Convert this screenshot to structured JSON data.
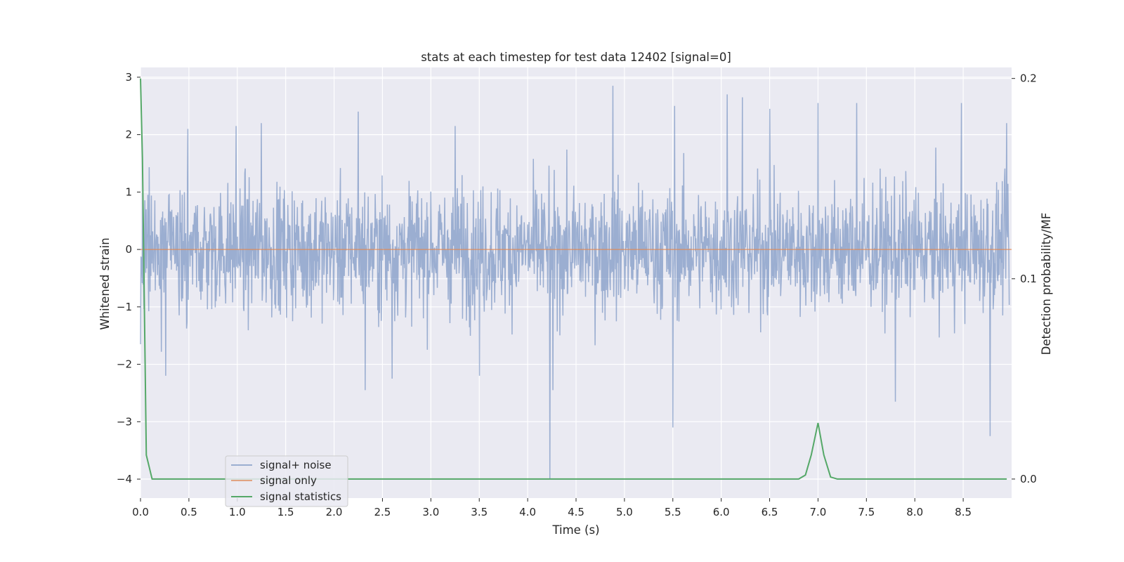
{
  "chart_data": {
    "type": "line",
    "title": "stats at each timestep for test data 12402 [signal=0]",
    "xlabel": "Time (s)",
    "ylabel": "Whitened strain",
    "ylabel_right": "Detection probability/MF",
    "xlim": [
      0.0,
      9.0
    ],
    "ylim": [
      -4.33,
      3.17
    ],
    "ylim_right": [
      -0.0095,
      0.2055
    ],
    "x_ticks": [
      0.0,
      0.5,
      1.0,
      1.5,
      2.0,
      2.5,
      3.0,
      3.5,
      4.0,
      4.5,
      5.0,
      5.5,
      6.0,
      6.5,
      7.0,
      7.5,
      8.0,
      8.5
    ],
    "y_ticks": [
      3,
      2,
      1,
      0,
      -1,
      -2,
      -3,
      -4
    ],
    "y_ticks_right": [
      0.2,
      0.1,
      0.0
    ],
    "grid": true,
    "legend_position": "lower-left",
    "colors": {
      "background": "#eaeaf2",
      "grid": "#ffffff",
      "signal_noise": "#4c72b0",
      "signal_only": "#dd8452",
      "signal_statistics": "#55a868"
    },
    "series": [
      {
        "name": "signal+ noise",
        "axis": "left",
        "description_samples": 2000,
        "spikes": [
          {
            "x": 0.0,
            "y": -1.65
          },
          {
            "x": 0.26,
            "y": -2.2
          },
          {
            "x": 0.49,
            "y": 2.1
          },
          {
            "x": 0.99,
            "y": 2.15
          },
          {
            "x": 1.25,
            "y": 2.2
          },
          {
            "x": 2.25,
            "y": 2.4
          },
          {
            "x": 2.32,
            "y": -2.45
          },
          {
            "x": 2.6,
            "y": -2.25
          },
          {
            "x": 3.25,
            "y": 2.15
          },
          {
            "x": 3.5,
            "y": -2.2
          },
          {
            "x": 4.23,
            "y": -4.0
          },
          {
            "x": 4.26,
            "y": -2.45
          },
          {
            "x": 4.88,
            "y": 2.85
          },
          {
            "x": 5.5,
            "y": -3.1
          },
          {
            "x": 5.52,
            "y": 2.5
          },
          {
            "x": 6.06,
            "y": 2.7
          },
          {
            "x": 6.22,
            "y": 2.65
          },
          {
            "x": 6.5,
            "y": 2.45
          },
          {
            "x": 7.0,
            "y": 2.55
          },
          {
            "x": 7.4,
            "y": 2.55
          },
          {
            "x": 7.8,
            "y": -2.65
          },
          {
            "x": 8.48,
            "y": 2.55
          },
          {
            "x": 8.78,
            "y": -3.25
          },
          {
            "x": 8.95,
            "y": 2.2
          }
        ]
      },
      {
        "name": "signal only",
        "axis": "left",
        "x": [
          0.0,
          9.0
        ],
        "y": [
          0.0,
          0.0
        ]
      },
      {
        "name": "signal statistics",
        "axis": "right",
        "x": [
          0.0,
          0.02,
          0.06,
          0.12,
          0.5,
          1.0,
          2.0,
          3.0,
          4.0,
          5.0,
          6.0,
          6.8,
          6.87,
          6.93,
          7.0,
          7.06,
          7.13,
          7.2,
          8.0,
          8.95
        ],
        "y": [
          0.2,
          0.16,
          0.012,
          0.0,
          0.0,
          0.0,
          0.0,
          0.0,
          0.0,
          0.0,
          0.0,
          0.0,
          0.002,
          0.012,
          0.028,
          0.012,
          0.001,
          0.0,
          0.0,
          0.0
        ]
      }
    ]
  }
}
